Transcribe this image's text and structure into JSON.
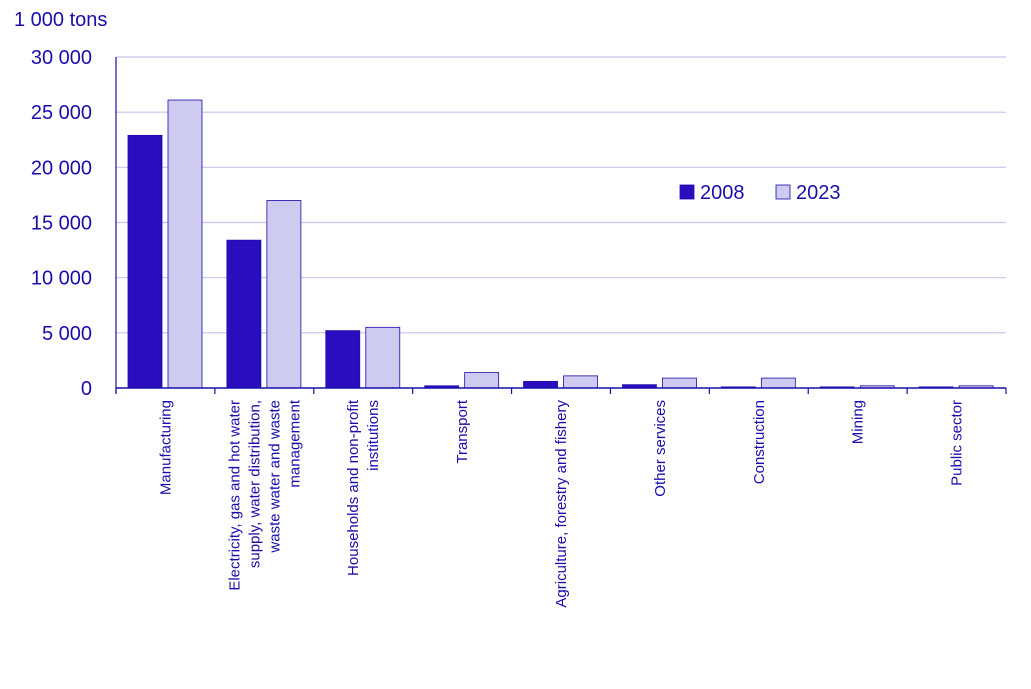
{
  "chart_data": {
    "type": "bar",
    "ylabel": "1 000 tons",
    "ylim": [
      0,
      30000
    ],
    "yticks": [
      0,
      5000,
      10000,
      15000,
      20000,
      25000,
      30000
    ],
    "ytick_labels": [
      "0",
      "5 000",
      "10 000",
      "15 000",
      "20 000",
      "25 000",
      "30 000"
    ],
    "categories": [
      [
        "Manufacturing"
      ],
      [
        "Electricity, gas and hot water",
        "supply, water distribution,",
        "waste water and waste",
        "management"
      ],
      [
        "Households and non-profit",
        "institutions"
      ],
      [
        "Transport"
      ],
      [
        "Agriculture, forestry and fishery"
      ],
      [
        "Other services"
      ],
      [
        "Construction"
      ],
      [
        "Mining"
      ],
      [
        "Public sector"
      ]
    ],
    "series": [
      {
        "name": "2008",
        "color": "#2a0dbf",
        "values": [
          22900,
          13400,
          5200,
          200,
          600,
          300,
          100,
          100,
          100
        ]
      },
      {
        "name": "2023",
        "color": "#cfcaf0",
        "values": [
          26100,
          17000,
          5500,
          1400,
          1100,
          900,
          900,
          200,
          200
        ]
      }
    ],
    "grid": true,
    "legend_position": "right-middle",
    "colors": {
      "text": "#1a0dab",
      "grid": "#c8c4ec",
      "axis": "#1a0dab",
      "bar_border": "#1a0dab"
    }
  }
}
